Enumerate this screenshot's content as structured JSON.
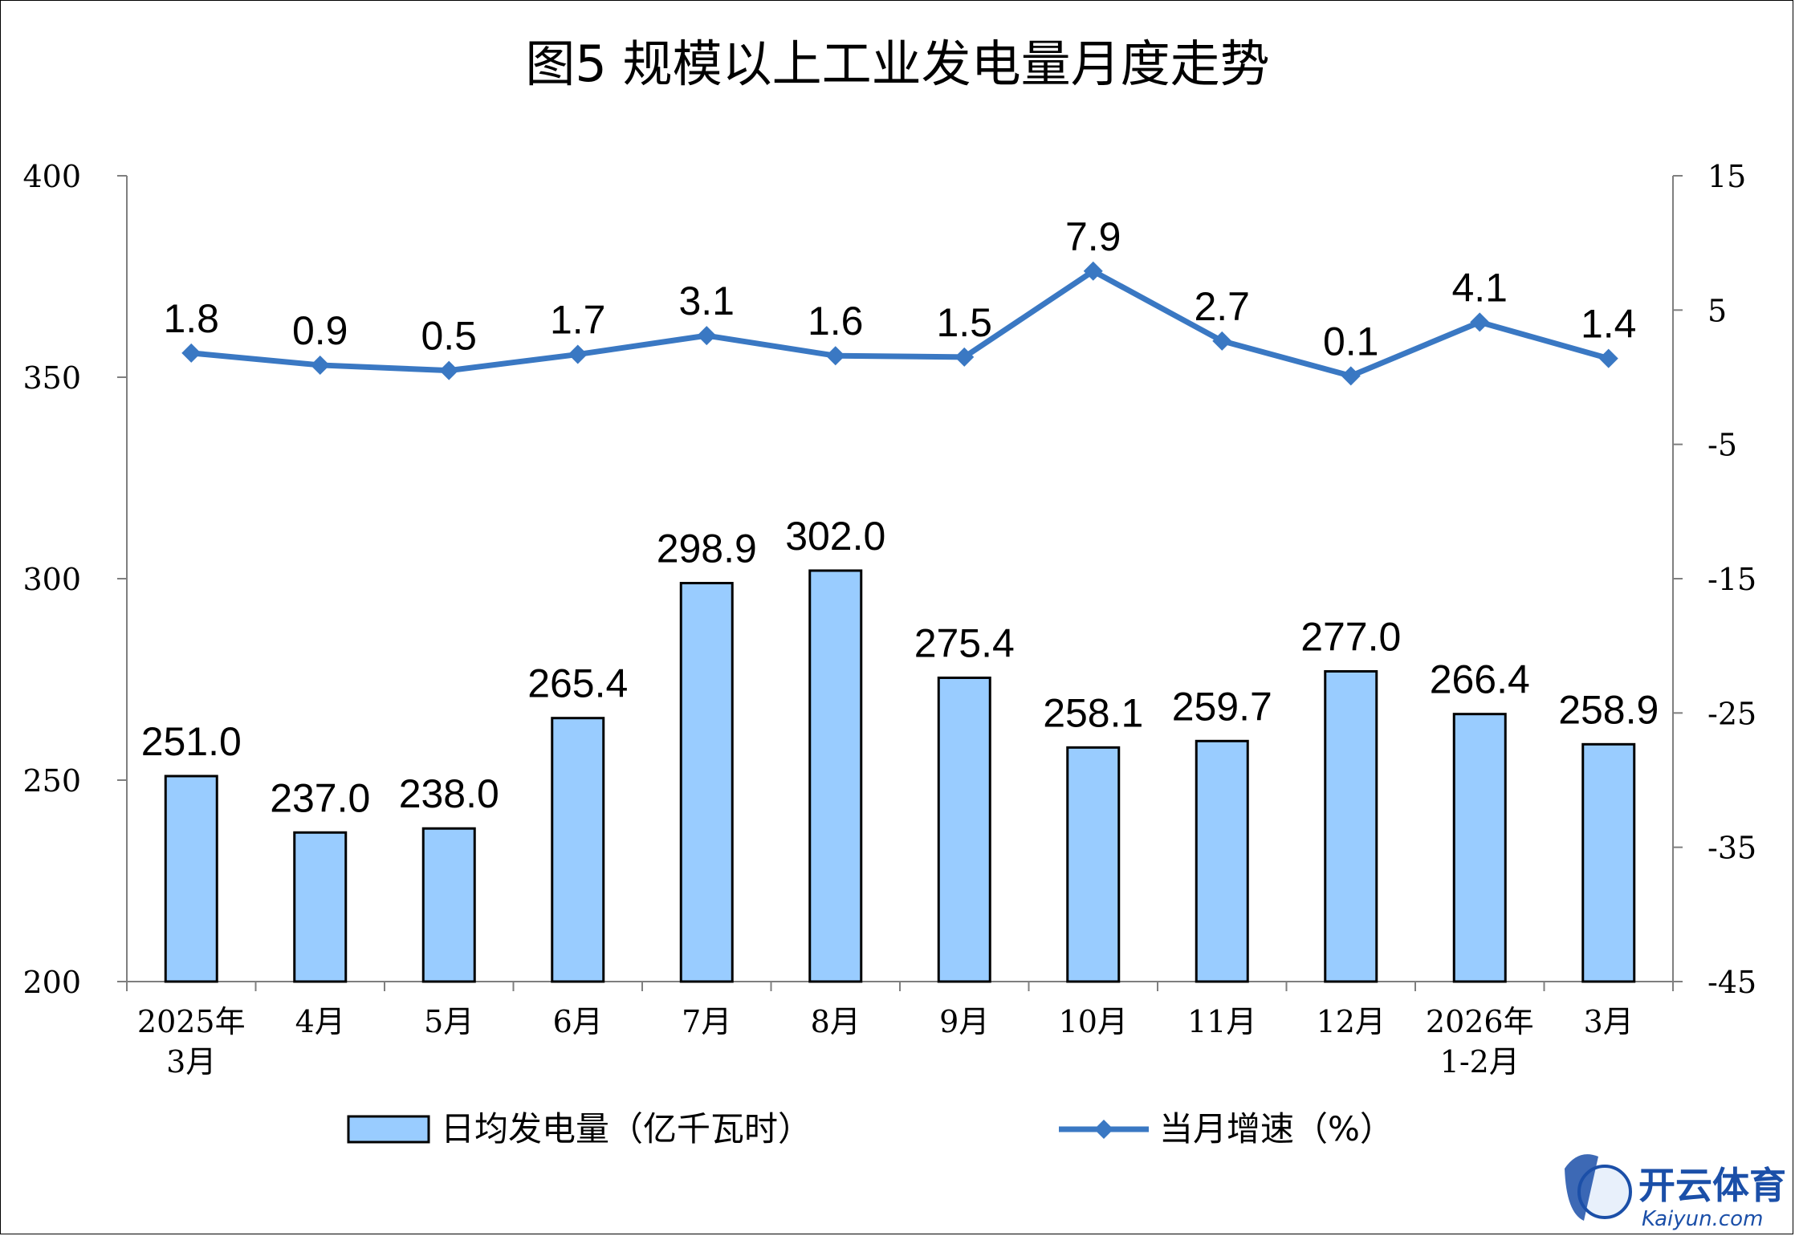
{
  "chart_data": {
    "type": "bar",
    "title": "图5  规模以上工业发电量月度走势",
    "categories": [
      [
        "2025年",
        "3月"
      ],
      [
        "4月"
      ],
      [
        "5月"
      ],
      [
        "6月"
      ],
      [
        "7月"
      ],
      [
        "8月"
      ],
      [
        "9月"
      ],
      [
        "10月"
      ],
      [
        "11月"
      ],
      [
        "12月"
      ],
      [
        "2026年",
        "1-2月"
      ],
      [
        "3月"
      ]
    ],
    "series": [
      {
        "name": "日均发电量（亿千瓦时）",
        "type": "bar",
        "axis": "left",
        "color": "#99ccff",
        "values": [
          251.0,
          237.0,
          238.0,
          265.4,
          298.9,
          302.0,
          275.4,
          258.1,
          259.7,
          277.0,
          266.4,
          258.9
        ],
        "labels": [
          "251.0",
          "237.0",
          "238.0",
          "265.4",
          "298.9",
          "302.0",
          "275.4",
          "258.1",
          "259.7",
          "277.0",
          "266.4",
          "258.9"
        ]
      },
      {
        "name": "当月增速（%）",
        "type": "line",
        "axis": "right",
        "color": "#3a78c3",
        "values": [
          1.8,
          0.9,
          0.5,
          1.7,
          3.1,
          1.6,
          1.5,
          7.9,
          2.7,
          0.1,
          4.1,
          1.4
        ],
        "labels": [
          "1.8",
          "0.9",
          "0.5",
          "1.7",
          "3.1",
          "1.6",
          "1.5",
          "7.9",
          "2.7",
          "0.1",
          "4.1",
          "1.4"
        ]
      }
    ],
    "y_left": {
      "ylim": [
        200,
        400
      ],
      "ticks": [
        "400",
        "350",
        "300",
        "250",
        "200"
      ],
      "tick_values": [
        400,
        350,
        300,
        250,
        200
      ]
    },
    "y_right": {
      "ylim": [
        -45,
        15
      ],
      "ticks": [
        "15",
        "5",
        "-5",
        "-15",
        "-25",
        "-35",
        "-45"
      ],
      "tick_values": [
        15,
        5,
        -5,
        -15,
        -25,
        -35,
        -45
      ]
    },
    "legend_position": "bottom",
    "grid": false
  },
  "watermark": {
    "text": "开云体育",
    "sub": "Kaiyun.com"
  }
}
